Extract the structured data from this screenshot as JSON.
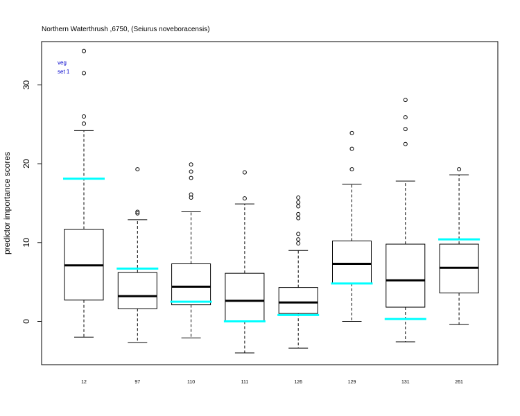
{
  "chart_data": {
    "type": "boxplot",
    "title": "Northern Waterthrush ,6750, (Seiurus noveboracensis)",
    "ylabel": "predictor importance scores",
    "xlabel": "",
    "ylim": [
      -5.5,
      35.5
    ],
    "yticks": [
      0,
      10,
      20,
      30
    ],
    "legend": [
      "veg",
      "set 1"
    ],
    "legend_position": "top-left",
    "colors": {
      "box": "#000000",
      "median": "#000000",
      "marker": "#00ffff",
      "legend_text": "#0000cc"
    },
    "categories": [
      "12",
      "97",
      "110",
      "111",
      "126",
      "129",
      "131",
      "261"
    ],
    "boxes": [
      {
        "lower_whisker": -2.0,
        "q1": 2.7,
        "median": 7.1,
        "q3": 11.7,
        "upper_whisker": 24.2,
        "outliers": [
          25.1,
          26.0,
          31.5,
          34.3
        ]
      },
      {
        "lower_whisker": -2.7,
        "q1": 1.6,
        "median": 3.2,
        "q3": 6.2,
        "upper_whisker": 12.9,
        "outliers": [
          13.7,
          13.9,
          19.3
        ]
      },
      {
        "lower_whisker": -2.1,
        "q1": 2.1,
        "median": 4.4,
        "q3": 7.3,
        "upper_whisker": 13.9,
        "outliers": [
          15.7,
          16.1,
          18.2,
          19.0,
          19.9
        ]
      },
      {
        "lower_whisker": -4.0,
        "q1": 0.0,
        "median": 2.6,
        "q3": 6.1,
        "upper_whisker": 14.9,
        "outliers": [
          15.6,
          18.9
        ]
      },
      {
        "lower_whisker": -3.4,
        "q1": 1.0,
        "median": 2.4,
        "q3": 4.3,
        "upper_whisker": 9.0,
        "outliers": [
          9.9,
          10.4,
          11.1,
          13.1,
          13.6,
          14.6,
          15.1,
          15.7
        ]
      },
      {
        "lower_whisker": 0.0,
        "q1": 4.8,
        "median": 7.3,
        "q3": 10.2,
        "upper_whisker": 17.4,
        "outliers": [
          19.3,
          21.9,
          23.9
        ]
      },
      {
        "lower_whisker": -2.6,
        "q1": 1.8,
        "median": 5.2,
        "q3": 9.8,
        "upper_whisker": 17.8,
        "outliers": [
          22.5,
          24.4,
          25.9,
          28.1
        ]
      },
      {
        "lower_whisker": -0.4,
        "q1": 3.6,
        "median": 6.8,
        "q3": 9.8,
        "upper_whisker": 18.6,
        "outliers": [
          19.3
        ]
      }
    ],
    "markers": [
      18.1,
      6.7,
      2.5,
      0.0,
      0.8,
      4.8,
      0.3,
      10.4
    ]
  }
}
